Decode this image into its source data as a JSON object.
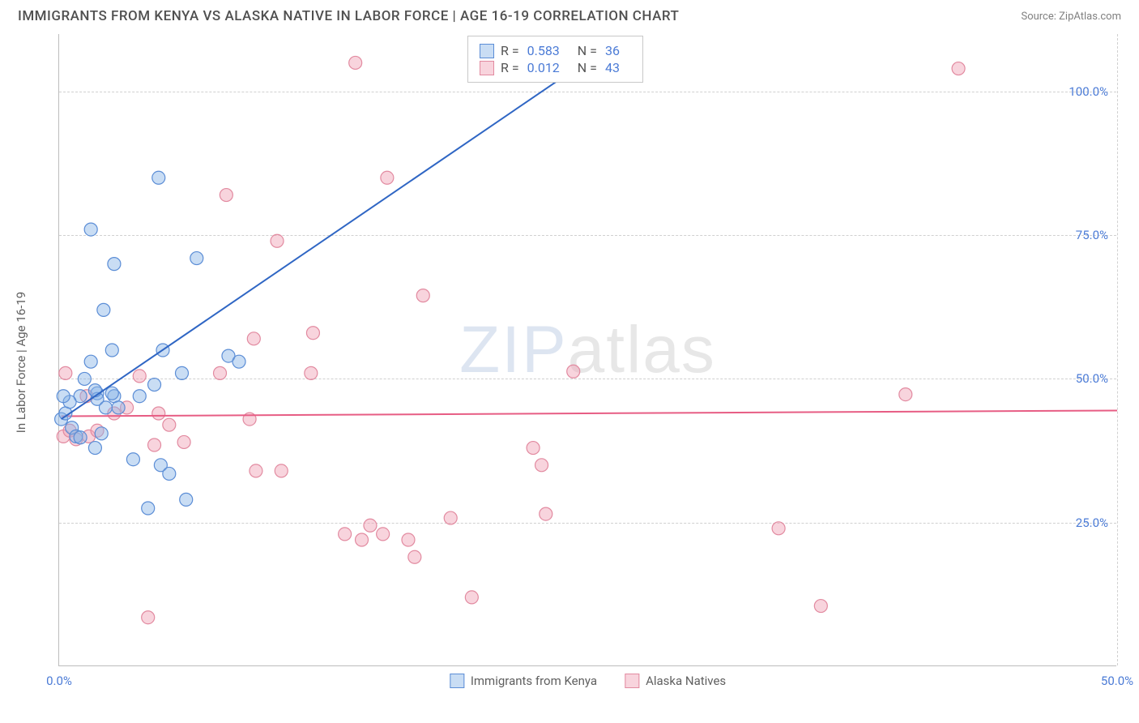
{
  "header": {
    "title": "IMMIGRANTS FROM KENYA VS ALASKA NATIVE IN LABOR FORCE | AGE 16-19 CORRELATION CHART",
    "source": "Source: ZipAtlas.com"
  },
  "chart": {
    "type": "scatter",
    "xlim": [
      0,
      50
    ],
    "ylim": [
      0,
      110
    ],
    "x_ticks": [
      0,
      50
    ],
    "x_tick_labels": [
      "0.0%",
      "50.0%"
    ],
    "y_ticks": [
      25,
      50,
      75,
      100
    ],
    "y_tick_labels": [
      "25.0%",
      "50.0%",
      "75.0%",
      "100.0%"
    ],
    "y_axis_title": "In Labor Force | Age 16-19",
    "background_color": "#ffffff",
    "grid_color": "#d0d0d0",
    "marker_radius": 8,
    "watermark_text_bold": "ZIP",
    "watermark_text_light": "atlas",
    "series_blue": {
      "label": "Immigrants from Kenya",
      "stroke": "#5b8dd6",
      "fill": "rgba(135,180,230,0.45)",
      "R": "0.583",
      "N": "36",
      "trend": {
        "x1": 0.1,
        "y1": 43,
        "x2": 26,
        "y2": 108
      },
      "trend_color": "#2f66c4",
      "trend_width": 2,
      "points": [
        [
          0.1,
          43
        ],
        [
          0.6,
          41.5
        ],
        [
          0.3,
          44
        ],
        [
          0.8,
          40
        ],
        [
          1.0,
          39.8
        ],
        [
          1.2,
          50
        ],
        [
          1.0,
          47
        ],
        [
          0.5,
          46
        ],
        [
          1.8,
          47.5
        ],
        [
          1.5,
          53
        ],
        [
          1.8,
          46.5
        ],
        [
          1.7,
          48
        ],
        [
          2.5,
          55
        ],
        [
          2.6,
          47
        ],
        [
          2.1,
          62
        ],
        [
          2.6,
          70
        ],
        [
          1.5,
          76
        ],
        [
          1.7,
          38
        ],
        [
          2.8,
          45
        ],
        [
          3.8,
          47
        ],
        [
          4.9,
          55
        ],
        [
          4.7,
          85
        ],
        [
          5.8,
          51
        ],
        [
          6.5,
          71
        ],
        [
          8.0,
          54
        ],
        [
          8.5,
          53
        ],
        [
          3.5,
          36
        ],
        [
          4.8,
          35
        ],
        [
          2.2,
          45
        ],
        [
          4.2,
          27.5
        ],
        [
          6.0,
          29
        ],
        [
          4.5,
          49
        ],
        [
          2.5,
          47.5
        ],
        [
          5.2,
          33.5
        ],
        [
          2.0,
          40.5
        ],
        [
          0.2,
          47
        ]
      ]
    },
    "series_pink": {
      "label": "Alaska Natives",
      "stroke": "#e28aa0",
      "fill": "rgba(240,160,180,0.45)",
      "R": "0.012",
      "N": "43",
      "trend": {
        "x1": 0.1,
        "y1": 43.5,
        "x2": 50,
        "y2": 44.5
      },
      "trend_color": "#e75d84",
      "trend_width": 2,
      "points": [
        [
          0.2,
          40
        ],
        [
          0.5,
          41
        ],
        [
          0.8,
          39.5
        ],
        [
          1.4,
          40
        ],
        [
          1.3,
          47
        ],
        [
          1.8,
          41
        ],
        [
          0.3,
          51
        ],
        [
          2.6,
          44
        ],
        [
          3.2,
          45
        ],
        [
          3.8,
          50.5
        ],
        [
          4.7,
          44
        ],
        [
          5.9,
          39
        ],
        [
          4.5,
          38.5
        ],
        [
          5.2,
          42
        ],
        [
          7.6,
          51
        ],
        [
          7.9,
          82
        ],
        [
          9.0,
          43
        ],
        [
          9.2,
          57
        ],
        [
          9.3,
          34
        ],
        [
          10.3,
          74
        ],
        [
          10.5,
          34
        ],
        [
          11.9,
          51
        ],
        [
          12.0,
          58
        ],
        [
          13.5,
          23
        ],
        [
          14.0,
          105
        ],
        [
          14.3,
          22
        ],
        [
          14.7,
          24.5
        ],
        [
          15.3,
          23
        ],
        [
          15.5,
          85
        ],
        [
          16.5,
          22
        ],
        [
          16.8,
          19
        ],
        [
          17.2,
          64.5
        ],
        [
          18.5,
          25.8
        ],
        [
          19.5,
          12
        ],
        [
          22.4,
          38
        ],
        [
          22.8,
          35
        ],
        [
          24.3,
          51.3
        ],
        [
          23.0,
          26.5
        ],
        [
          40.0,
          47.3
        ],
        [
          36.0,
          10.5
        ],
        [
          34.0,
          24
        ],
        [
          42.5,
          104
        ],
        [
          4.2,
          8.5
        ]
      ]
    },
    "legend_top": {
      "R_label": "R =",
      "N_label": "N ="
    }
  }
}
